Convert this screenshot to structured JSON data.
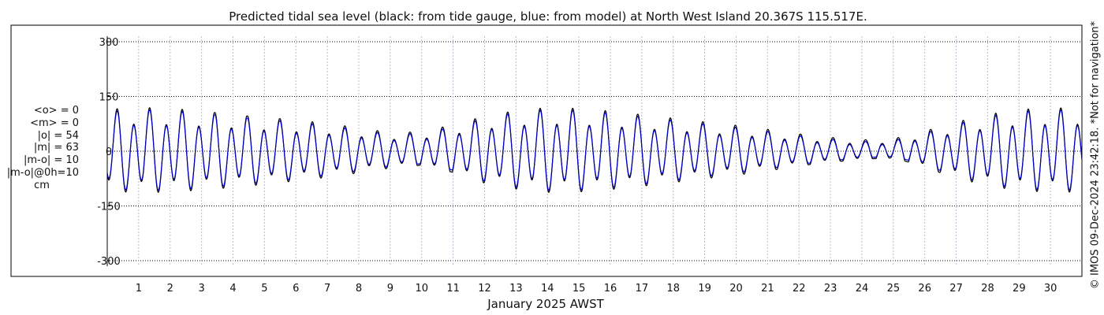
{
  "chart_data": {
    "type": "line",
    "title": "Predicted tidal sea level (black: from tide gauge, blue: from model) at North West Island 20.367S 115.517E.",
    "xlabel": "January 2025 AWST",
    "ylabel": "",
    "xlim": [
      0,
      31
    ],
    "ylim": [
      -320,
      320
    ],
    "yticks": [
      300,
      150,
      0,
      -150,
      -300
    ],
    "yticklabels": [
      "300",
      "150",
      "0",
      "-150",
      "-300"
    ],
    "xticks": [
      1,
      2,
      3,
      4,
      5,
      6,
      7,
      8,
      9,
      10,
      11,
      12,
      13,
      14,
      15,
      16,
      17,
      18,
      19,
      20,
      21,
      22,
      23,
      24,
      25,
      26,
      27,
      28,
      29,
      30
    ],
    "xticklabels": [
      "1",
      "2",
      "3",
      "4",
      "5",
      "6",
      "7",
      "8",
      "9",
      "10",
      "11",
      "12",
      "13",
      "14",
      "15",
      "16",
      "17",
      "18",
      "19",
      "20",
      "21",
      "22",
      "23",
      "24",
      "25",
      "26",
      "27",
      "28",
      "29",
      "30"
    ],
    "grid": true,
    "legend": "none",
    "series": [
      {
        "color": "#000000",
        "lows": [
          -120,
          -128,
          -126,
          -122,
          -116,
          -106,
          -92,
          -78,
          -62,
          -46,
          -38,
          -58,
          -88,
          -110,
          -124,
          -126,
          -120,
          -110,
          -96,
          -82,
          -68,
          -54,
          -40,
          -30,
          -22,
          -18,
          -42,
          -76,
          -104,
          -120,
          -124
        ],
        "highs": [
          118,
          122,
          118,
          110,
          100,
          92,
          86,
          80,
          70,
          58,
          68,
          88,
          108,
          120,
          124,
          118,
          110,
          100,
          92,
          84,
          78,
          68,
          56,
          46,
          40,
          48,
          68,
          88,
          104,
          118,
          122
        ]
      },
      {
        "color": "#0000cc",
        "lows": [
          -112,
          -122,
          -120,
          -116,
          -110,
          -100,
          -86,
          -72,
          -56,
          -42,
          -34,
          -52,
          -82,
          -104,
          -118,
          -120,
          -114,
          -104,
          -90,
          -76,
          -62,
          -48,
          -36,
          -26,
          -18,
          -14,
          -36,
          -70,
          -98,
          -114,
          -118
        ],
        "highs": [
          112,
          116,
          112,
          104,
          94,
          86,
          80,
          74,
          64,
          52,
          62,
          82,
          102,
          114,
          118,
          112,
          104,
          94,
          86,
          78,
          72,
          62,
          50,
          40,
          34,
          42,
          62,
          82,
          98,
          112,
          116
        ]
      }
    ]
  },
  "stats": {
    "mean_obs": "<o> = 0",
    "mean_model": "<m> = 0",
    "abs_obs": "|o| = 54",
    "abs_model": "|m| = 63",
    "abs_diff": "|m-o| = 10",
    "abs_diff_0h": "|m-o|@0h=10",
    "unit": "cm"
  },
  "side_note": "© IMOS 09-Dec-2024 23:42:18. *Not for navigation*"
}
